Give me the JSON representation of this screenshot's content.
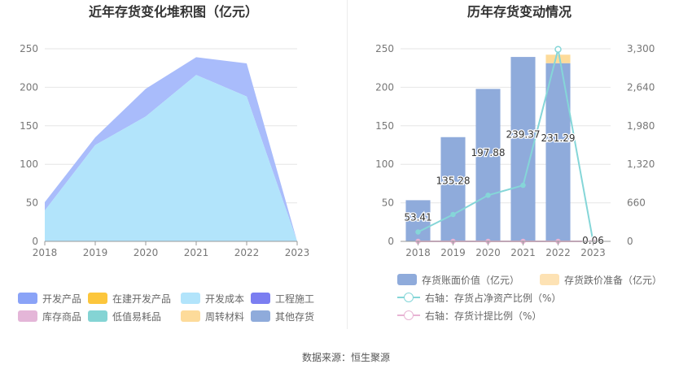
{
  "left": {
    "chart_data": {
      "type": "area",
      "title": "近年存货变化堆积图（亿元）",
      "x": [
        "2018",
        "2019",
        "2020",
        "2021",
        "2022",
        "2023"
      ],
      "ylim": [
        0,
        250
      ],
      "yticks": [
        0,
        50,
        100,
        150,
        200,
        250
      ],
      "grid": true,
      "stacked": true,
      "series": [
        {
          "name": "开发成本",
          "color": "#b2e4fb",
          "values": [
            40,
            125,
            162,
            216,
            188,
            0
          ]
        },
        {
          "name": "开发产品",
          "color": "#a9bcfb",
          "values": [
            11,
            10,
            36,
            23,
            43,
            0
          ]
        }
      ],
      "legend_position": "bottom"
    },
    "legend": [
      {
        "label": "开发产品",
        "color": "#8aa3f7"
      },
      {
        "label": "在建开发产品",
        "color": "#fcc63c"
      },
      {
        "label": "开发成本",
        "color": "#b2e4fb"
      },
      {
        "label": "工程施工",
        "color": "#7b7ef1"
      },
      {
        "label": "库存商品",
        "color": "#e4b6d8"
      },
      {
        "label": "低值易耗品",
        "color": "#84d4d4"
      },
      {
        "label": "周转材料",
        "color": "#fddb9a"
      },
      {
        "label": "其他存货",
        "color": "#8fabdb"
      }
    ]
  },
  "right": {
    "chart_data": {
      "type": "bar",
      "title": "历年存货变动情况",
      "categories": [
        "2018",
        "2019",
        "2020",
        "2021",
        "2022",
        "2023"
      ],
      "ylim": [
        0,
        250
      ],
      "yticks_left": [
        0,
        50,
        100,
        150,
        200,
        250
      ],
      "ylim_right": [
        0,
        3300
      ],
      "yticks_right": [
        "0",
        "660",
        "1,320",
        "1,980",
        "2,640",
        "3,300"
      ],
      "grid": true,
      "series": [
        {
          "name": "存货账面价值（亿元）",
          "type": "bar",
          "color": "#8fabdb",
          "values": [
            53.41,
            135.28,
            197.88,
            239.37,
            231.29,
            0.06
          ],
          "labels": [
            "53.41",
            "135.28",
            "197.88",
            "239.37",
            "231.29",
            "0.06"
          ]
        },
        {
          "name": "存货跌价准备（亿元）",
          "type": "bar",
          "stacked": true,
          "color": "#fddb9a",
          "values": [
            0,
            0,
            0,
            0,
            11,
            0
          ]
        },
        {
          "name": "右轴：存货占净资产比例（%）",
          "type": "line",
          "axis": "right",
          "color": "#85d6d8",
          "values": [
            160,
            460,
            790,
            960,
            3290,
            0
          ]
        },
        {
          "name": "右轴：存货计提比例（%）",
          "type": "line",
          "axis": "right",
          "color": "#e8b4d4",
          "values": [
            0,
            0,
            0,
            0,
            0,
            0
          ]
        }
      ],
      "legend_position": "bottom"
    },
    "legend": [
      {
        "label": "存货账面价值（亿元）",
        "color": "#8fabdb",
        "kind": "box"
      },
      {
        "label": "存货跌价准备（亿元）",
        "color": "#fde2b4",
        "kind": "box"
      },
      {
        "label": "右轴：存货占净资产比例（%）",
        "color": "#85d6d8",
        "kind": "line"
      },
      {
        "label": "右轴：存货计提比例（%）",
        "color": "#e8b4d4",
        "kind": "line"
      }
    ]
  },
  "footer": "数据来源：恒生聚源"
}
